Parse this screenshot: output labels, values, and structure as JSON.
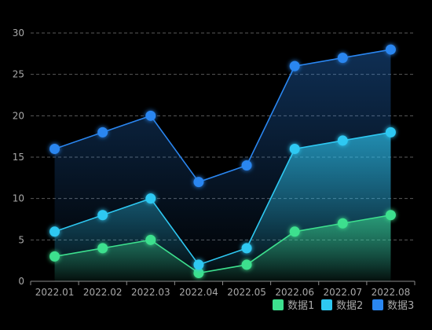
{
  "chart_data": {
    "type": "area",
    "categories": [
      "2022.01",
      "2022.02",
      "2022.03",
      "2022.04",
      "2022.05",
      "2022.06",
      "2022.07",
      "2022.08"
    ],
    "series": [
      {
        "name": "数据1",
        "color": "#3de08e",
        "values": [
          3,
          4,
          5,
          1,
          2,
          6,
          7,
          8
        ]
      },
      {
        "name": "数据2",
        "color": "#2ec8f2",
        "values": [
          6,
          8,
          10,
          2,
          4,
          16,
          17,
          18
        ]
      },
      {
        "name": "数据3",
        "color": "#2a86f0",
        "values": [
          16,
          18,
          20,
          12,
          14,
          26,
          27,
          28
        ]
      }
    ],
    "ylim": [
      0,
      30
    ],
    "yticks": [
      0,
      5,
      10,
      15,
      20,
      25,
      30
    ],
    "grid": "dashed horizontal",
    "legend_position": "bottom-right",
    "colors": {
      "background": "#000000",
      "grid": "#5a5a5a",
      "axis": "#8a8a8a",
      "text": "#a8a8a8"
    }
  }
}
